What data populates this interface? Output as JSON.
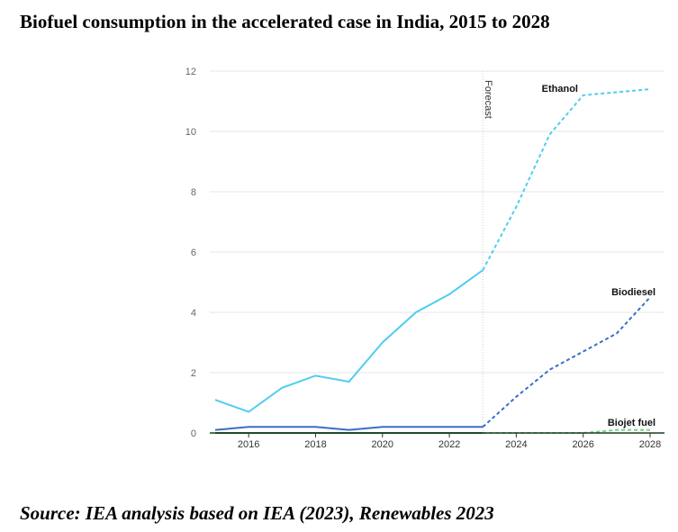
{
  "title": "Biofuel consumption in the accelerated case in India, 2015 to 2028",
  "source": "Source: IEA analysis based on IEA (2023), Renewables 2023",
  "chart_data": {
    "type": "line",
    "title": "Biofuel consumption in the accelerated case in India, 2015 to 2028",
    "xlabel": "",
    "ylabel": "",
    "x": [
      2015,
      2016,
      2017,
      2018,
      2019,
      2020,
      2021,
      2022,
      2023,
      2024,
      2025,
      2026,
      2027,
      2028
    ],
    "xticks": [
      2016,
      2018,
      2020,
      2022,
      2024,
      2026,
      2028
    ],
    "yticks": [
      0,
      2,
      4,
      6,
      8,
      10,
      12
    ],
    "ylim": [
      0,
      12
    ],
    "xlim": [
      2015,
      2028
    ],
    "grid": true,
    "forecast_start": 2023,
    "forecast_label": "Forecast",
    "series": [
      {
        "name": "Ethanol",
        "color": "#4fcdf0",
        "values": [
          1.1,
          0.7,
          1.5,
          1.9,
          1.7,
          3.0,
          4.0,
          4.6,
          5.4,
          7.5,
          9.9,
          11.2,
          11.3,
          11.4
        ]
      },
      {
        "name": "Biodiesel",
        "color": "#3a6fc4",
        "values": [
          0.1,
          0.2,
          0.2,
          0.2,
          0.1,
          0.2,
          0.2,
          0.2,
          0.2,
          1.2,
          2.1,
          2.7,
          3.3,
          4.5
        ]
      },
      {
        "name": "Biojet fuel",
        "color": "#6fd48a",
        "values": [
          0,
          0,
          0,
          0,
          0,
          0,
          0,
          0,
          0,
          0,
          0,
          0,
          0.1,
          0.1
        ]
      }
    ]
  }
}
